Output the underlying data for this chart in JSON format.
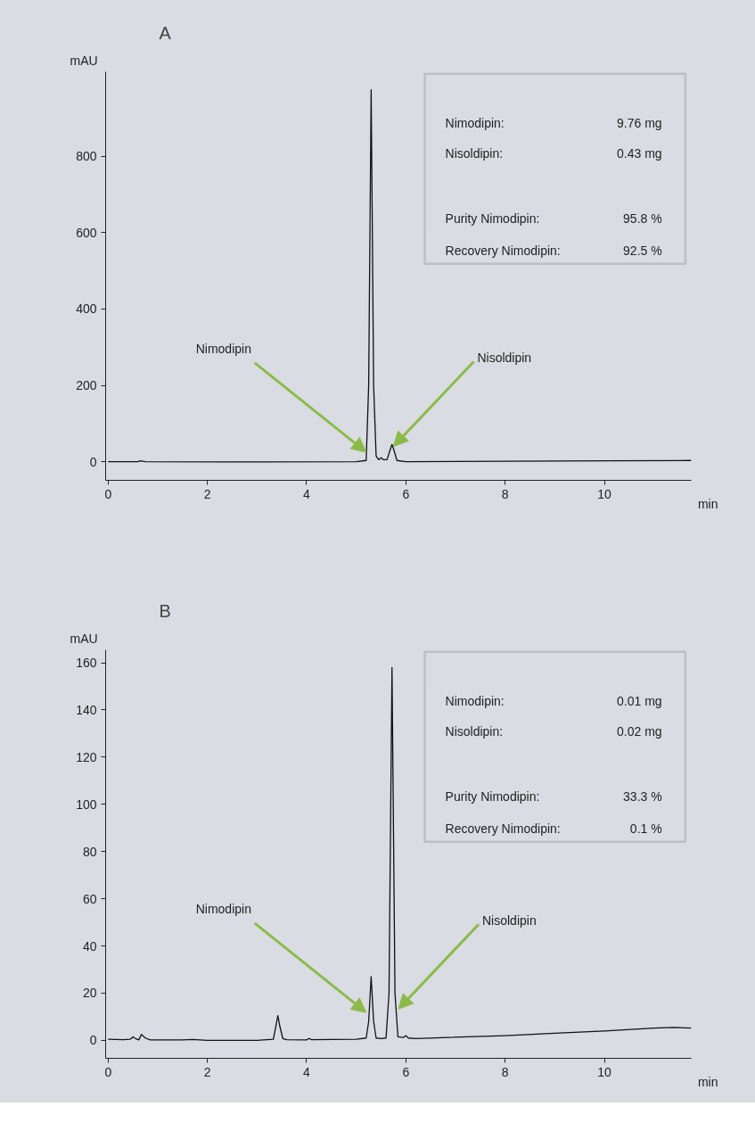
{
  "chart_data": [
    {
      "type": "line",
      "title": "A",
      "xlabel": "min",
      "ylabel": "mAU",
      "color": "#111111",
      "x": [
        0,
        0.6,
        0.65,
        0.75,
        3,
        5.0,
        5.2,
        5.25,
        5.3,
        5.35,
        5.4,
        5.45,
        5.5,
        5.55,
        5.62,
        5.68,
        5.72,
        5.76,
        5.82,
        6,
        8,
        10,
        11.75
      ],
      "values": [
        0,
        0,
        2,
        0,
        -1,
        0,
        3,
        200,
        975,
        200,
        15,
        5,
        10,
        5,
        5,
        30,
        45,
        30,
        3,
        0,
        1,
        2,
        3
      ],
      "xlim": [
        -0.05,
        11.75
      ],
      "ylim": [
        -49,
        1022
      ],
      "xticks": [
        0,
        2,
        4,
        6,
        8,
        10
      ],
      "yticks": [
        0,
        200,
        400,
        600,
        800
      ],
      "annotations": [
        "Nimodipin:",
        "9.76 mg",
        "Nisoldipin:",
        "0.43 mg",
        "Purity Nimodipin:",
        "95.8 %",
        "Recovery Nimodipin:",
        "92.5 %",
        {
          "text": "Nimodipin",
          "x": 5.2,
          "y": 25
        },
        {
          "text": "Nisoldipin",
          "x": 5.75,
          "y": 40
        }
      ]
    },
    {
      "type": "line",
      "title": "B",
      "xlabel": "min",
      "ylabel": "mAU",
      "color": "#111111",
      "x": [
        0,
        0.3,
        0.45,
        0.5,
        0.55,
        0.62,
        0.67,
        0.75,
        0.85,
        1.5,
        1.7,
        2,
        3,
        3.33,
        3.38,
        3.42,
        3.46,
        3.52,
        3.6,
        4,
        4.05,
        4.1,
        5,
        5.2,
        5.25,
        5.3,
        5.35,
        5.4,
        5.5,
        5.6,
        5.66,
        5.72,
        5.78,
        5.84,
        5.95,
        6.0,
        6.05,
        6.2,
        8,
        9,
        10,
        11,
        11.4,
        11.75
      ],
      "values": [
        0.5,
        0.3,
        0.5,
        1.5,
        0.8,
        0.2,
        2.5,
        1,
        0.2,
        0.2,
        0.4,
        0,
        0,
        0.5,
        6,
        10.5,
        6,
        0.8,
        0.3,
        0.2,
        0.8,
        0.3,
        0.5,
        1,
        8,
        27,
        8,
        1,
        0.8,
        1,
        20,
        158,
        20,
        1.5,
        1.2,
        2,
        1,
        0.8,
        2,
        3,
        4,
        5.2,
        5.5,
        5.2
      ],
      "xlim": [
        -0.05,
        11.75
      ],
      "ylim": [
        -7.6,
        165.5
      ],
      "xticks": [
        0,
        2,
        4,
        6,
        8,
        10
      ],
      "yticks": [
        0,
        20,
        40,
        60,
        80,
        100,
        120,
        140,
        160
      ],
      "annotations": [
        "Nimodipin:",
        "0.01 mg",
        "Nisoldipin:",
        "0.02 mg",
        "Purity Nimodipin:",
        "33.3 %",
        "Recovery Nimodipin:",
        "0.1 %",
        {
          "text": "Nimodipin",
          "x": 5.2,
          "y": 11.8
        },
        {
          "text": "Nisoldipin",
          "x": 5.85,
          "y": 13.3
        }
      ]
    }
  ]
}
